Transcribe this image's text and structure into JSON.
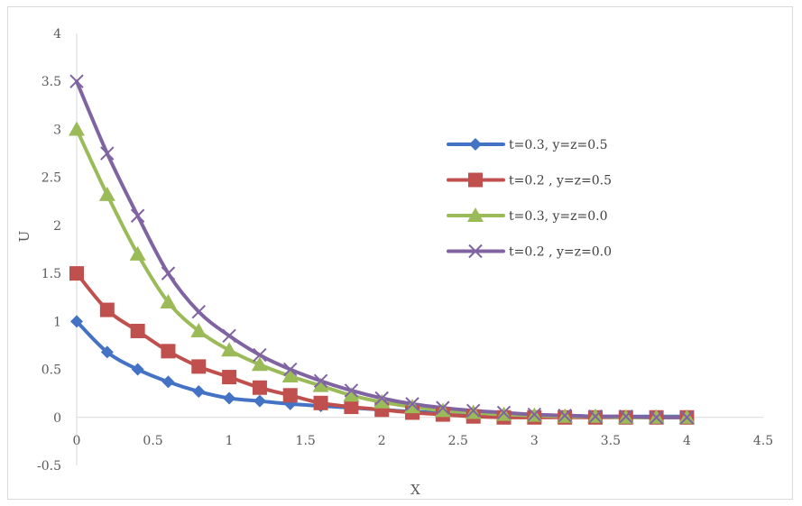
{
  "chart_data": {
    "type": "line",
    "title": "",
    "xlabel": "X",
    "ylabel": "U",
    "xlim": [
      0,
      4.5
    ],
    "ylim": [
      -0.5,
      4
    ],
    "x_ticks": [
      0,
      0.5,
      1,
      1.5,
      2,
      2.5,
      3,
      3.5,
      4,
      4.5
    ],
    "y_ticks": [
      -0.5,
      0,
      0.5,
      1,
      1.5,
      2,
      2.5,
      3,
      3.5,
      4
    ],
    "x_tick_labels": [
      "0",
      "0.5",
      "1",
      "1.5",
      "2",
      "2.5",
      "3",
      "3.5",
      "4",
      "4.5"
    ],
    "y_tick_labels": [
      "-0.5",
      "0",
      "0.5",
      "1",
      "1.5",
      "2",
      "2.5",
      "3",
      "3.5",
      "4"
    ],
    "grid": false,
    "legend_position": "right",
    "x": [
      0,
      0.2,
      0.4,
      0.6,
      0.8,
      1.0,
      1.2,
      1.4,
      1.6,
      1.8,
      2.0,
      2.2,
      2.4,
      2.6,
      2.8,
      3.0,
      3.2,
      3.4,
      3.6,
      3.8,
      4.0
    ],
    "series": [
      {
        "name": "t=0.3, y=z=0.5",
        "color": "#4472c4",
        "marker": "diamond",
        "values": [
          1.0,
          0.68,
          0.5,
          0.37,
          0.27,
          0.2,
          0.17,
          0.14,
          0.12,
          0.1,
          0.08,
          0.06,
          0.05,
          0.04,
          0.03,
          0.02,
          0.02,
          0.01,
          0.01,
          0.01,
          0.01
        ]
      },
      {
        "name": "t=0.2 , y=z=0.5",
        "color": "#c0504d",
        "marker": "square",
        "values": [
          1.5,
          1.12,
          0.9,
          0.69,
          0.53,
          0.42,
          0.31,
          0.23,
          0.15,
          0.11,
          0.08,
          0.05,
          0.03,
          0.01,
          0.0,
          0.0,
          0.0,
          0.0,
          0.0,
          0.0,
          0.0
        ]
      },
      {
        "name": "t=0.3, y=z=0.0",
        "color": "#9bbb59",
        "marker": "triangle",
        "values": [
          3.0,
          2.32,
          1.7,
          1.2,
          0.9,
          0.7,
          0.55,
          0.43,
          0.33,
          0.23,
          0.16,
          0.11,
          0.07,
          0.05,
          0.03,
          0.02,
          0.01,
          0.01,
          0.0,
          0.0,
          0.0
        ]
      },
      {
        "name": "t=0.2 , y=z=0.0",
        "color": "#8064a2",
        "marker": "x",
        "values": [
          3.5,
          2.75,
          2.1,
          1.5,
          1.1,
          0.85,
          0.65,
          0.5,
          0.38,
          0.28,
          0.2,
          0.14,
          0.1,
          0.07,
          0.05,
          0.03,
          0.02,
          0.01,
          0.01,
          0.0,
          0.0
        ]
      }
    ]
  }
}
